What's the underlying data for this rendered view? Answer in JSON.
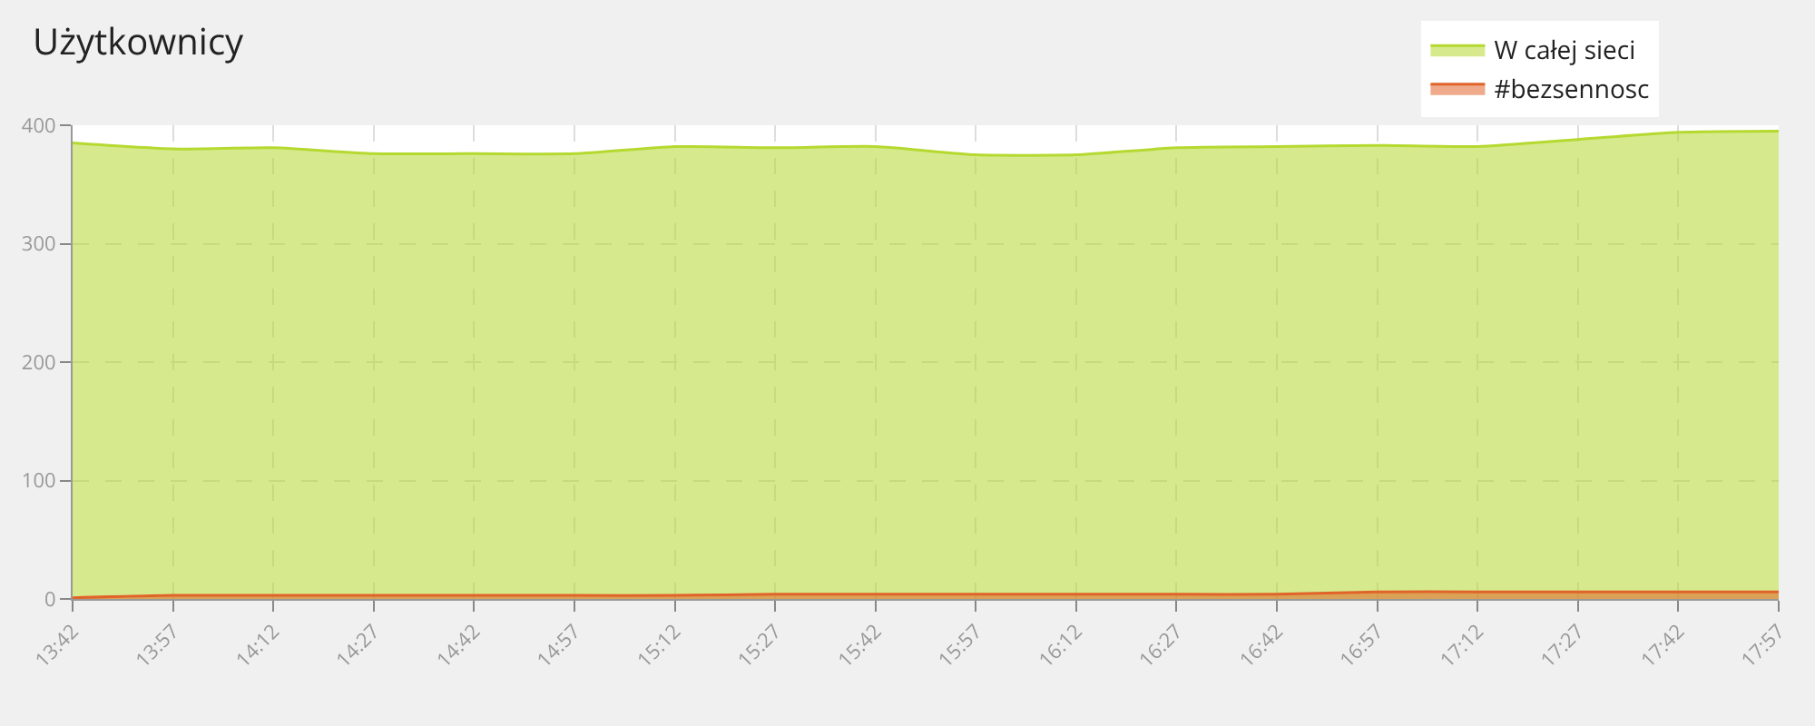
{
  "chart_data": {
    "type": "area",
    "title": "Użytkownicy",
    "x": [
      13.7,
      13.95,
      14.2,
      14.45,
      14.7,
      14.95,
      15.2,
      15.45,
      15.7,
      15.95,
      16.2,
      16.45,
      16.7,
      16.95,
      17.2,
      17.45,
      17.7,
      17.95
    ],
    "series": [
      {
        "name": "W całej sieci",
        "color": "#b5d930",
        "values": [
          385,
          380,
          381,
          376,
          376,
          376,
          382,
          381,
          382,
          375,
          375,
          381,
          382,
          383,
          382,
          388,
          394,
          395
        ]
      },
      {
        "name": "#bezsennosc",
        "color": "#e0642a",
        "values": [
          1,
          3,
          3,
          3,
          3,
          3,
          3,
          4,
          4,
          4,
          4,
          4,
          4,
          6,
          6,
          6,
          6,
          6
        ]
      }
    ],
    "xlim": [
      13.7,
      17.95
    ],
    "xticks": [
      {
        "value": 13.7,
        "label": "13:42"
      },
      {
        "value": 13.95,
        "label": "13:57"
      },
      {
        "value": 14.2,
        "label": "14:12"
      },
      {
        "value": 14.45,
        "label": "14:27"
      },
      {
        "value": 14.7,
        "label": "14:42"
      },
      {
        "value": 14.95,
        "label": "14:57"
      },
      {
        "value": 15.2,
        "label": "15:12"
      },
      {
        "value": 15.45,
        "label": "15:27"
      },
      {
        "value": 15.7,
        "label": "15:42"
      },
      {
        "value": 15.95,
        "label": "15:57"
      },
      {
        "value": 16.2,
        "label": "16:12"
      },
      {
        "value": 16.45,
        "label": "16:27"
      },
      {
        "value": 16.7,
        "label": "16:42"
      },
      {
        "value": 16.95,
        "label": "16:57"
      },
      {
        "value": 17.2,
        "label": "17:12"
      },
      {
        "value": 17.45,
        "label": "17:27"
      },
      {
        "value": 17.7,
        "label": "17:42"
      },
      {
        "value": 17.95,
        "label": "17:57"
      }
    ],
    "ylim": [
      0,
      400
    ],
    "yticks": [
      0,
      100,
      200,
      300,
      400
    ],
    "grid": true,
    "legend": "top right",
    "marker": "none",
    "line_style": "solid"
  }
}
